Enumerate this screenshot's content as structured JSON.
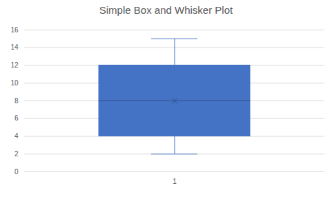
{
  "chart_data": {
    "type": "box",
    "title": "Simple Box and Whisker Plot",
    "categories": [
      "1"
    ],
    "min": [
      2
    ],
    "q1": [
      4
    ],
    "median": [
      8
    ],
    "q3": [
      12
    ],
    "max": [
      15
    ],
    "mean": [
      8
    ],
    "marker": "x",
    "color": "#4472c4",
    "ylim": [
      0,
      16
    ],
    "yticks": [
      0,
      2,
      4,
      6,
      8,
      10,
      12,
      14,
      16
    ],
    "grid": true
  }
}
